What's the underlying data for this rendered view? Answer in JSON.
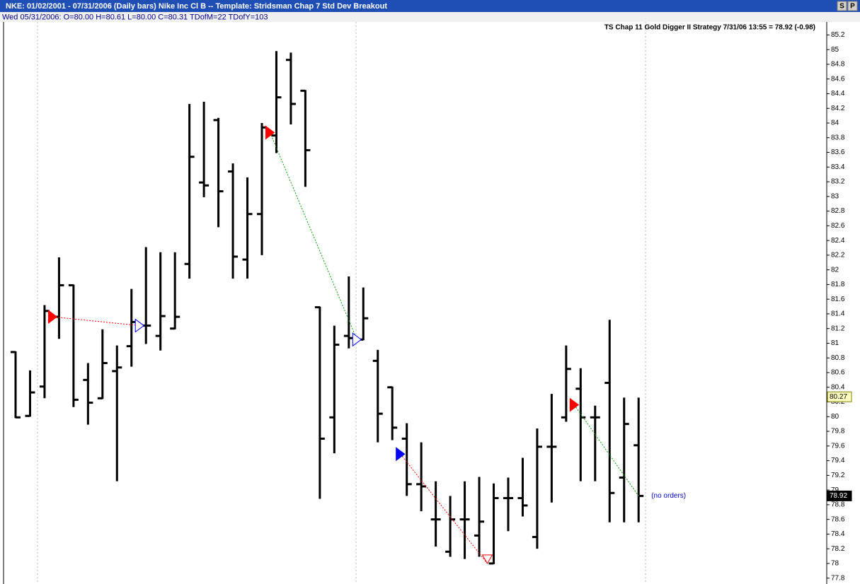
{
  "chart_data": {
    "type": "ohlc",
    "title": "NKE:  01/02/2001 - 07/31/2006  (Daily bars)   Nike Inc Cl B  --  Template: Stridsman Chap 7 Std Dev Breakout",
    "subtitle": "Wed 05/31/2006:  O=80.00  H=80.61  L=80.00  C=80.31  TDofM=22  TDofY=103",
    "annotation": "TS Chap 11 Gold Digger II Strategy   7/31/06 13:55 = 78.92 (-0.98)",
    "status": "(no orders)",
    "buttons": [
      "S",
      "P"
    ],
    "color": "#000000",
    "open": [
      80.88,
      80.01,
      80.41,
      81.36,
      81.79,
      80.5,
      80.25,
      80.62,
      80.96,
      81.24,
      81.1,
      81.2,
      82.08,
      83.19,
      84.04,
      83.34,
      82.14,
      82.76,
      83.83,
      84.86,
      84.44,
      81.49,
      79.99,
      81.1,
      81.05,
      80.76,
      80.4,
      79.7,
      79.08,
      78.6,
      78.16,
      78.6,
      78.38,
      78.0,
      78.89,
      78.89,
      78.36,
      79.59,
      79.99,
      80.38,
      79.99,
      80.46,
      79.17,
      79.61
    ],
    "high": [
      80.88,
      80.62,
      81.51,
      82.16,
      81.79,
      80.72,
      81.18,
      80.96,
      81.73,
      82.3,
      82.23,
      82.23,
      84.25,
      84.28,
      84.06,
      83.44,
      83.25,
      83.99,
      84.97,
      84.95,
      84.44,
      81.49,
      81.23,
      81.9,
      81.75,
      80.9,
      80.4,
      79.9,
      79.64,
      79.11,
      78.91,
      79.11,
      79.17,
      79.08,
      79.16,
      79.43,
      79.83,
      80.3,
      80.96,
      80.65,
      80.14,
      81.31,
      80.25,
      80.25
    ],
    "low": [
      79.99,
      80.01,
      80.26,
      81.07,
      80.14,
      79.9,
      80.25,
      79.13,
      80.69,
      81.0,
      80.91,
      81.2,
      81.89,
      83.0,
      82.59,
      81.89,
      81.89,
      82.21,
      83.6,
      83.99,
      83.14,
      78.89,
      79.51,
      80.94,
      81.05,
      79.66,
      79.69,
      78.93,
      78.72,
      78.24,
      78.1,
      78.07,
      78.1,
      78.0,
      78.45,
      78.65,
      78.21,
      78.84,
      79.94,
      79.13,
      79.13,
      78.57,
      78.57,
      78.57
    ],
    "close": [
      79.99,
      80.33,
      81.44,
      81.79,
      80.23,
      80.19,
      80.73,
      80.67,
      81.29,
      81.24,
      81.37,
      81.36,
      83.54,
      83.15,
      83.07,
      82.18,
      82.76,
      83.94,
      84.35,
      84.26,
      83.63,
      79.7,
      80.98,
      81.07,
      81.34,
      80.04,
      79.85,
      79.08,
      79.05,
      78.6,
      78.6,
      78.6,
      78.57,
      78.89,
      78.89,
      78.79,
      79.59,
      79.59,
      80.65,
      79.99,
      79.99,
      78.96,
      79.9,
      78.92
    ],
    "trades": [
      {
        "entry_bar": 3,
        "entry_price": 81.36,
        "entry_color": "#ff0000",
        "exit_bar": 9,
        "exit_price": 81.24,
        "exit_color": "#0000ff",
        "line_color": "#ff0000"
      },
      {
        "entry_bar": 18,
        "entry_price": 83.87,
        "entry_color": "#ff0000",
        "exit_bar": 24,
        "exit_price": 81.05,
        "exit_color": "#0000ff",
        "line_color": "#00a000"
      },
      {
        "entry_bar": 27,
        "entry_price": 79.49,
        "entry_color": "#0000ff",
        "exit_bar": 33,
        "exit_price": 78.0,
        "exit_color": "#ff0000",
        "line_color": "#ff0000"
      },
      {
        "entry_bar": 39,
        "entry_price": 80.16,
        "entry_color": "#ff0000",
        "exit_bar": 43,
        "exit_price": 78.92,
        "line_color": "#00a000"
      }
    ],
    "price_tags": [
      {
        "value": 80.27,
        "color": "#ffffc0"
      },
      {
        "value": 78.92,
        "color": "#000000"
      }
    ],
    "ylim": [
      77.72,
      85.31
    ],
    "yticks": [
      77.8,
      78,
      78.2,
      78.4,
      78.6,
      78.8,
      79,
      79.2,
      79.4,
      79.6,
      79.8,
      80,
      80.2,
      80.4,
      80.6,
      80.8,
      81,
      81.2,
      81.4,
      81.6,
      81.8,
      82,
      82.2,
      82.4,
      82.6,
      82.8,
      83,
      83.2,
      83.4,
      83.6,
      83.8,
      84,
      84.2,
      84.4,
      84.6,
      84.8,
      85,
      85.2
    ]
  }
}
